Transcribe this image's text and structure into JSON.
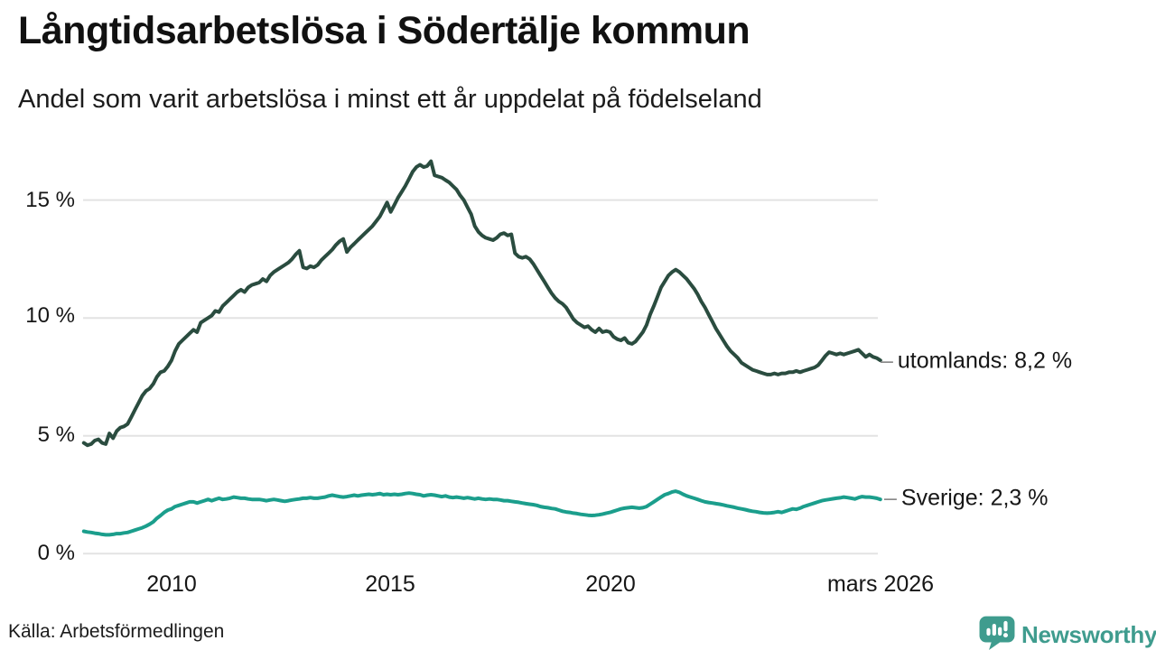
{
  "header": {
    "title": "Långtidsarbetslösa i Södertälje kommun",
    "subtitle": "Andel som varit arbetslösa i minst ett år uppdelat på födelseland"
  },
  "source": {
    "label": "Källa: Arbetsförmedlingen"
  },
  "branding": {
    "wordmark": "Newsworthy",
    "color": "#3f9c8e"
  },
  "chart_data": {
    "type": "line",
    "title": "Långtidsarbetslösa i Södertälje kommun",
    "subtitle": "Andel som varit arbetslösa i minst ett år uppdelat på födelseland",
    "unit": "%",
    "grid": "horizontal",
    "grid_color": "#e3e3e3",
    "ylim": [
      0,
      17.5
    ],
    "x_start_year": 2008,
    "x_end": "mars 2026",
    "points_per_year": 12,
    "y_ticks": [
      {
        "value": 0,
        "label": "0 %"
      },
      {
        "value": 5,
        "label": "5 %"
      },
      {
        "value": 10,
        "label": "10 %"
      },
      {
        "value": 15,
        "label": "15 %"
      }
    ],
    "x_ticks": [
      {
        "year": 2010,
        "label": "2010"
      },
      {
        "year": 2015,
        "label": "2015"
      },
      {
        "year": 2020,
        "label": "2020"
      },
      {
        "year": 2026.17,
        "label": "mars 2026"
      }
    ],
    "series": [
      {
        "name": "utomlands",
        "color": "#2a4c3f",
        "end_label": "utomlands: 8,2 %",
        "end_value": 8.2,
        "values": [
          4.7,
          4.6,
          4.65,
          4.8,
          4.85,
          4.7,
          4.65,
          5.1,
          4.9,
          5.2,
          5.35,
          5.4,
          5.5,
          5.8,
          6.1,
          6.4,
          6.7,
          6.9,
          7.0,
          7.2,
          7.5,
          7.7,
          7.75,
          7.95,
          8.2,
          8.6,
          8.9,
          9.05,
          9.2,
          9.35,
          9.5,
          9.4,
          9.8,
          9.9,
          10.0,
          10.1,
          10.3,
          10.25,
          10.5,
          10.65,
          10.8,
          10.95,
          11.1,
          11.2,
          11.1,
          11.3,
          11.4,
          11.45,
          11.5,
          11.65,
          11.55,
          11.8,
          11.95,
          12.05,
          12.15,
          12.25,
          12.35,
          12.5,
          12.7,
          12.85,
          12.15,
          12.1,
          12.2,
          12.15,
          12.25,
          12.45,
          12.6,
          12.75,
          12.9,
          13.1,
          13.25,
          13.35,
          12.8,
          13.0,
          13.15,
          13.3,
          13.45,
          13.6,
          13.75,
          13.9,
          14.1,
          14.3,
          14.6,
          14.9,
          14.5,
          14.8,
          15.1,
          15.35,
          15.6,
          15.9,
          16.2,
          16.4,
          16.5,
          16.4,
          16.45,
          16.65,
          16.05,
          16.0,
          15.95,
          15.85,
          15.75,
          15.6,
          15.45,
          15.2,
          15.0,
          14.7,
          14.4,
          13.9,
          13.65,
          13.5,
          13.4,
          13.35,
          13.3,
          13.4,
          13.55,
          13.6,
          13.5,
          13.55,
          12.75,
          12.6,
          12.55,
          12.6,
          12.5,
          12.3,
          12.05,
          11.8,
          11.55,
          11.3,
          11.05,
          10.85,
          10.7,
          10.6,
          10.45,
          10.2,
          9.95,
          9.8,
          9.7,
          9.6,
          9.65,
          9.5,
          9.4,
          9.55,
          9.4,
          9.45,
          9.4,
          9.2,
          9.1,
          9.05,
          9.15,
          8.95,
          8.9,
          9.0,
          9.2,
          9.4,
          9.7,
          10.15,
          10.5,
          10.9,
          11.3,
          11.55,
          11.8,
          11.95,
          12.05,
          11.95,
          11.8,
          11.65,
          11.45,
          11.25,
          11.0,
          10.7,
          10.45,
          10.15,
          9.85,
          9.55,
          9.3,
          9.05,
          8.8,
          8.6,
          8.45,
          8.3,
          8.1,
          8.0,
          7.9,
          7.8,
          7.75,
          7.7,
          7.65,
          7.6,
          7.6,
          7.65,
          7.6,
          7.65,
          7.65,
          7.7,
          7.7,
          7.75,
          7.7,
          7.75,
          7.8,
          7.85,
          7.9,
          8.0,
          8.2,
          8.4,
          8.55,
          8.5,
          8.45,
          8.5,
          8.45,
          8.5,
          8.55,
          8.6,
          8.65,
          8.5,
          8.35,
          8.45,
          8.35,
          8.3,
          8.2
        ]
      },
      {
        "name": "Sverige",
        "color": "#1b9e8c",
        "end_label": "Sverige: 2,3 %",
        "end_value": 2.3,
        "values": [
          0.95,
          0.92,
          0.9,
          0.87,
          0.85,
          0.82,
          0.8,
          0.8,
          0.82,
          0.85,
          0.85,
          0.88,
          0.9,
          0.95,
          1.0,
          1.05,
          1.1,
          1.17,
          1.25,
          1.35,
          1.5,
          1.62,
          1.75,
          1.85,
          1.9,
          2.0,
          2.05,
          2.1,
          2.15,
          2.2,
          2.2,
          2.15,
          2.2,
          2.25,
          2.3,
          2.25,
          2.3,
          2.35,
          2.3,
          2.32,
          2.35,
          2.4,
          2.38,
          2.35,
          2.35,
          2.32,
          2.3,
          2.3,
          2.3,
          2.28,
          2.25,
          2.28,
          2.3,
          2.28,
          2.25,
          2.22,
          2.25,
          2.28,
          2.3,
          2.32,
          2.35,
          2.35,
          2.38,
          2.35,
          2.35,
          2.38,
          2.4,
          2.45,
          2.48,
          2.45,
          2.42,
          2.4,
          2.42,
          2.45,
          2.48,
          2.45,
          2.48,
          2.5,
          2.52,
          2.5,
          2.52,
          2.55,
          2.5,
          2.52,
          2.5,
          2.52,
          2.5,
          2.52,
          2.55,
          2.57,
          2.55,
          2.52,
          2.5,
          2.45,
          2.48,
          2.5,
          2.48,
          2.45,
          2.42,
          2.45,
          2.4,
          2.38,
          2.4,
          2.38,
          2.35,
          2.38,
          2.35,
          2.32,
          2.35,
          2.32,
          2.3,
          2.32,
          2.3,
          2.3,
          2.28,
          2.25,
          2.25,
          2.22,
          2.2,
          2.18,
          2.15,
          2.12,
          2.1,
          2.08,
          2.05,
          2.0,
          1.97,
          1.95,
          1.92,
          1.9,
          1.85,
          1.8,
          1.77,
          1.75,
          1.72,
          1.7,
          1.67,
          1.65,
          1.63,
          1.62,
          1.63,
          1.65,
          1.68,
          1.72,
          1.75,
          1.8,
          1.85,
          1.9,
          1.93,
          1.95,
          1.97,
          1.95,
          1.93,
          1.95,
          2.0,
          2.1,
          2.2,
          2.3,
          2.4,
          2.5,
          2.55,
          2.62,
          2.65,
          2.6,
          2.52,
          2.45,
          2.4,
          2.35,
          2.3,
          2.25,
          2.2,
          2.17,
          2.15,
          2.12,
          2.1,
          2.07,
          2.03,
          2.0,
          1.97,
          1.93,
          1.9,
          1.87,
          1.83,
          1.8,
          1.78,
          1.75,
          1.73,
          1.72,
          1.73,
          1.75,
          1.78,
          1.75,
          1.8,
          1.85,
          1.9,
          1.88,
          1.93,
          2.0,
          2.05,
          2.1,
          2.15,
          2.2,
          2.25,
          2.28,
          2.3,
          2.33,
          2.35,
          2.37,
          2.4,
          2.38,
          2.35,
          2.32,
          2.38,
          2.42,
          2.4,
          2.4,
          2.38,
          2.35,
          2.3
        ]
      }
    ]
  }
}
